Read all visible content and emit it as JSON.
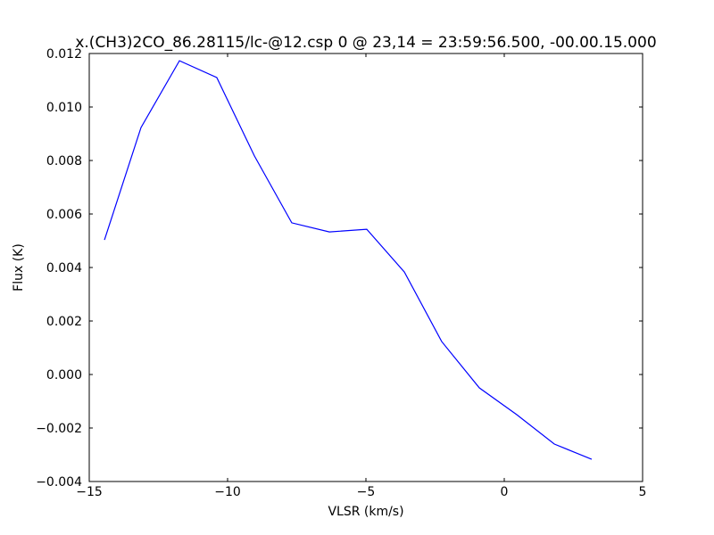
{
  "chart_data": {
    "type": "line",
    "title": "x.(CH3)2CO_86.28115/lc-@12.csp 0 @ 23,14 = 23:59:56.500, -00.00.15.000",
    "x_label": "VLSR (km/s)",
    "y_label": "Flux (K)",
    "series": [
      {
        "color": "#0000ff",
        "x": [
          -14.45,
          -13.13,
          -11.74,
          -10.39,
          -9.03,
          -7.68,
          -6.32,
          -4.97,
          -3.61,
          -2.26,
          -0.9,
          0.45,
          1.81,
          3.16
        ],
        "values": [
          0.00503,
          0.00923,
          0.01173,
          0.0111,
          0.00817,
          0.00567,
          0.00533,
          0.00543,
          0.00383,
          0.00123,
          -0.0005,
          -0.0015,
          -0.0026,
          -0.00317
        ]
      }
    ],
    "xlim": [
      -15,
      5
    ],
    "xticks": [
      {
        "value": -15,
        "label": "−15"
      },
      {
        "value": -10,
        "label": "−10"
      },
      {
        "value": -5,
        "label": "−5"
      },
      0,
      5
    ],
    "ylim": [
      -0.004,
      0.012
    ],
    "yticks": [
      {
        "value": -0.004,
        "label": "−0.004"
      },
      {
        "value": -0.002,
        "label": "−0.002"
      },
      {
        "value": 0,
        "label": "0.000"
      },
      0.002,
      0.004,
      0.006,
      0.008,
      {
        "value": 0.01,
        "label": "0.010"
      },
      0.012
    ],
    "grid": false
  }
}
